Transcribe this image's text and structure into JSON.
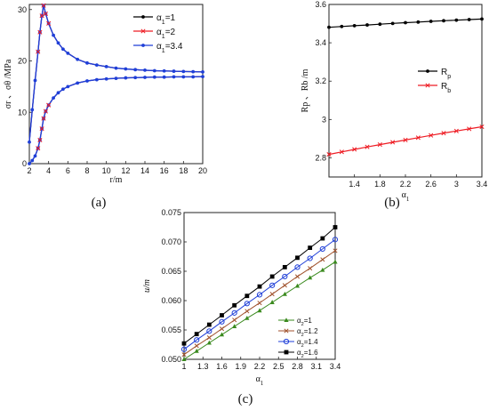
{
  "chart_data": [
    {
      "id": "a",
      "type": "line",
      "panel_label": "(a)",
      "xlabel": "r/m",
      "ylabel": "σr 、σθ /MPa",
      "xlim": [
        2,
        20
      ],
      "ylim": [
        0,
        31
      ],
      "xticks": [
        "2",
        "4",
        "6",
        "8",
        "10",
        "12",
        "14",
        "16",
        "18",
        "20"
      ],
      "yticks": [
        "0",
        "10",
        "20",
        "30"
      ],
      "legend_position": "top-right",
      "series": [
        {
          "name": "α1=1",
          "color": "#000000",
          "marker": "dot"
        },
        {
          "name": "α1=2",
          "color": "#ee1c24",
          "marker": "x"
        },
        {
          "name": "α1=3.4",
          "color": "#1f3fd8",
          "marker": "dot"
        }
      ],
      "curves": {
        "sigma_theta": {
          "x": [
            2.0,
            2.3,
            2.6,
            2.9,
            3.1,
            3.3,
            3.48,
            3.7,
            4.0,
            4.5,
            5.0,
            5.5,
            6.0,
            7.0,
            8.0,
            9.0,
            10.0,
            11.0,
            12.0,
            13.0,
            14.0,
            15.0,
            16.0,
            17.0,
            18.0,
            19.0,
            20.0
          ],
          "y": [
            4.2,
            10.5,
            16.2,
            21.8,
            25.6,
            28.8,
            30.8,
            29.2,
            27.3,
            25.0,
            23.5,
            22.3,
            21.5,
            20.3,
            19.6,
            19.2,
            18.9,
            18.6,
            18.45,
            18.3,
            18.2,
            18.1,
            18.05,
            18.0,
            17.95,
            17.9,
            17.85
          ]
        },
        "sigma_r": {
          "x": [
            2.0,
            2.3,
            2.6,
            2.9,
            3.1,
            3.3,
            3.48,
            3.7,
            4.0,
            4.5,
            5.0,
            5.5,
            6.0,
            7.0,
            8.0,
            9.0,
            10.0,
            11.0,
            12.0,
            13.0,
            14.0,
            15.0,
            16.0,
            17.0,
            18.0,
            19.0,
            20.0
          ],
          "y": [
            0.0,
            0.6,
            1.5,
            3.0,
            4.6,
            6.8,
            8.8,
            10.2,
            11.4,
            12.8,
            13.8,
            14.5,
            15.0,
            15.7,
            16.1,
            16.35,
            16.5,
            16.6,
            16.7,
            16.75,
            16.8,
            16.85,
            16.85,
            16.9,
            16.9,
            16.9,
            16.95
          ]
        }
      }
    },
    {
      "id": "b",
      "type": "line",
      "panel_label": "(b)",
      "xlabel": "α1",
      "ylabel": "Rp 、Rb /m",
      "xlim": [
        1,
        3.4
      ],
      "ylim": [
        2.7,
        3.6
      ],
      "xticks": [
        "1.4",
        "1.8",
        "2.2",
        "2.6",
        "3",
        "3.4"
      ],
      "yticks": [
        "2.8",
        "3",
        "3.2",
        "3.4",
        "3.6"
      ],
      "legend_position": "center-right",
      "series": [
        {
          "name": "Rp",
          "color": "#000000",
          "marker": "dot",
          "x": [
            1.0,
            1.2,
            1.4,
            1.6,
            1.8,
            2.0,
            2.2,
            2.4,
            2.6,
            2.8,
            3.0,
            3.2,
            3.4
          ],
          "values": [
            3.481,
            3.485,
            3.489,
            3.493,
            3.497,
            3.501,
            3.505,
            3.508,
            3.512,
            3.515,
            3.518,
            3.521,
            3.524
          ]
        },
        {
          "name": "Rb",
          "color": "#ee1c24",
          "marker": "x",
          "x": [
            1.0,
            1.2,
            1.4,
            1.6,
            1.8,
            2.0,
            2.2,
            2.4,
            2.6,
            2.8,
            3.0,
            3.2,
            3.4
          ],
          "values": [
            2.818,
            2.831,
            2.844,
            2.857,
            2.869,
            2.881,
            2.893,
            2.905,
            2.917,
            2.929,
            2.94,
            2.951,
            2.962
          ]
        }
      ]
    },
    {
      "id": "c",
      "type": "line",
      "panel_label": "(c)",
      "xlabel": "α1",
      "ylabel": "u/m",
      "xlim": [
        1,
        3.4
      ],
      "ylim": [
        0.05,
        0.075
      ],
      "xticks": [
        "1",
        "1.3",
        "1.6",
        "1.9",
        "2.2",
        "2.5",
        "2.8",
        "3.1",
        "3.4"
      ],
      "yticks": [
        "0.050",
        "0.055",
        "0.060",
        "0.065",
        "0.070",
        "0.075"
      ],
      "legend_position": "bottom-right",
      "series": [
        {
          "name": "α2=1",
          "color": "#3a8a1e",
          "marker": "triangle",
          "x": [
            1.0,
            1.2,
            1.4,
            1.6,
            1.8,
            2.0,
            2.2,
            2.4,
            2.6,
            2.8,
            3.0,
            3.2,
            3.4
          ],
          "values": [
            0.05,
            0.0514,
            0.0528,
            0.0542,
            0.0556,
            0.057,
            0.0583,
            0.0597,
            0.0611,
            0.0625,
            0.0639,
            0.0652,
            0.0666
          ]
        },
        {
          "name": "α2=1.2",
          "color": "#a0522d",
          "marker": "x",
          "x": [
            1.0,
            1.2,
            1.4,
            1.6,
            1.8,
            2.0,
            2.2,
            2.4,
            2.6,
            2.8,
            3.0,
            3.2,
            3.4
          ],
          "values": [
            0.0508,
            0.0523,
            0.0537,
            0.0552,
            0.0567,
            0.0582,
            0.0596,
            0.0611,
            0.0626,
            0.0641,
            0.0655,
            0.067,
            0.0685
          ]
        },
        {
          "name": "α2=1.4",
          "color": "#1f3fd8",
          "marker": "circle",
          "x": [
            1.0,
            1.2,
            1.4,
            1.6,
            1.8,
            2.0,
            2.2,
            2.4,
            2.6,
            2.8,
            3.0,
            3.2,
            3.4
          ],
          "values": [
            0.0517,
            0.0533,
            0.0548,
            0.0564,
            0.0579,
            0.0595,
            0.061,
            0.0626,
            0.0641,
            0.0657,
            0.0672,
            0.0688,
            0.0704
          ]
        },
        {
          "name": "α2=1.6",
          "color": "#000000",
          "marker": "square",
          "x": [
            1.0,
            1.2,
            1.4,
            1.6,
            1.8,
            2.0,
            2.2,
            2.4,
            2.6,
            2.8,
            3.0,
            3.2,
            3.4
          ],
          "values": [
            0.0527,
            0.0543,
            0.0559,
            0.0575,
            0.0592,
            0.0608,
            0.0624,
            0.0641,
            0.0657,
            0.0673,
            0.069,
            0.0706,
            0.0725
          ]
        }
      ]
    }
  ]
}
